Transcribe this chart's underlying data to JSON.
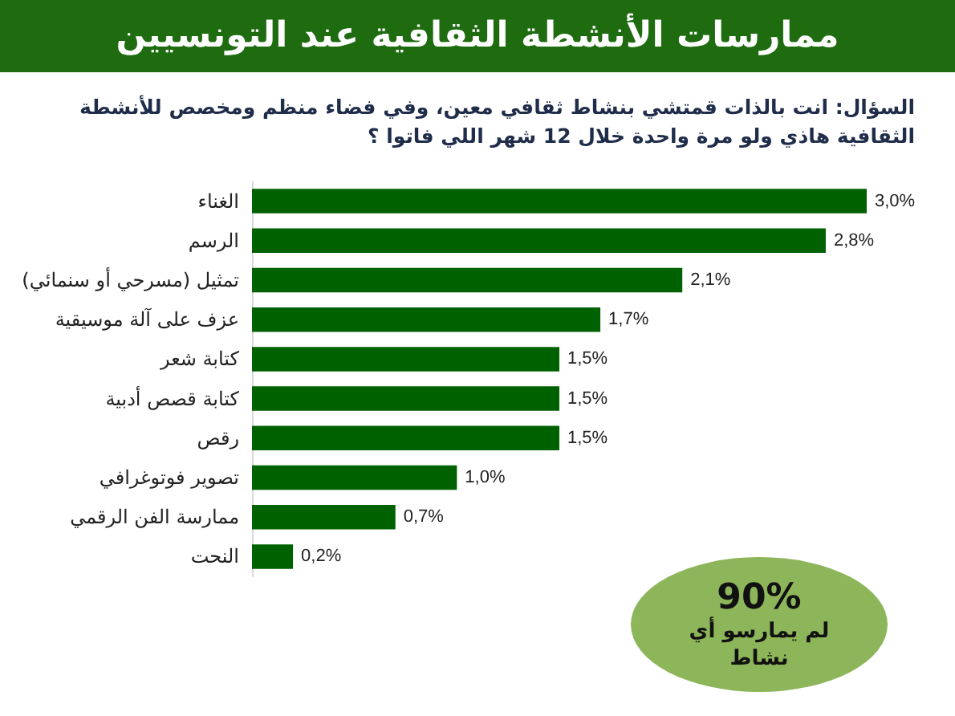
{
  "chart_data": {
    "type": "bar",
    "orientation": "horizontal",
    "title": "ممارسات الأنشطة الثقافية عند التونسيين",
    "subtitle": "السؤال: انت بالذات قمتشي بنشاط ثقافي معين، وفي فضاء منظم ومخصص للأنشطة الثقافية هاذي ولو مرة واحدة خلال 12 شهر اللي فاتوا ؟",
    "categories": [
      "الغناء",
      "الرسم",
      "تمثيل (مسرحي أو سنمائي)",
      "عزف على آلة موسيقية",
      "كتابة شعر",
      "كتابة قصص أدبية",
      "رقص",
      "تصوير فوتوغرافي",
      "ممارسة الفن الرقمي",
      "النحت"
    ],
    "values": [
      3.0,
      2.8,
      2.1,
      1.7,
      1.5,
      1.5,
      1.5,
      1.0,
      0.7,
      0.2
    ],
    "value_labels": [
      "3,0%",
      "2,8%",
      "2,1%",
      "1,7%",
      "1,5%",
      "1,5%",
      "1,5%",
      "1,0%",
      "0,7%",
      "0,2%"
    ],
    "color": "#006100",
    "annotations": [
      "90%",
      "لم يمارسو أي نشاط"
    ]
  }
}
